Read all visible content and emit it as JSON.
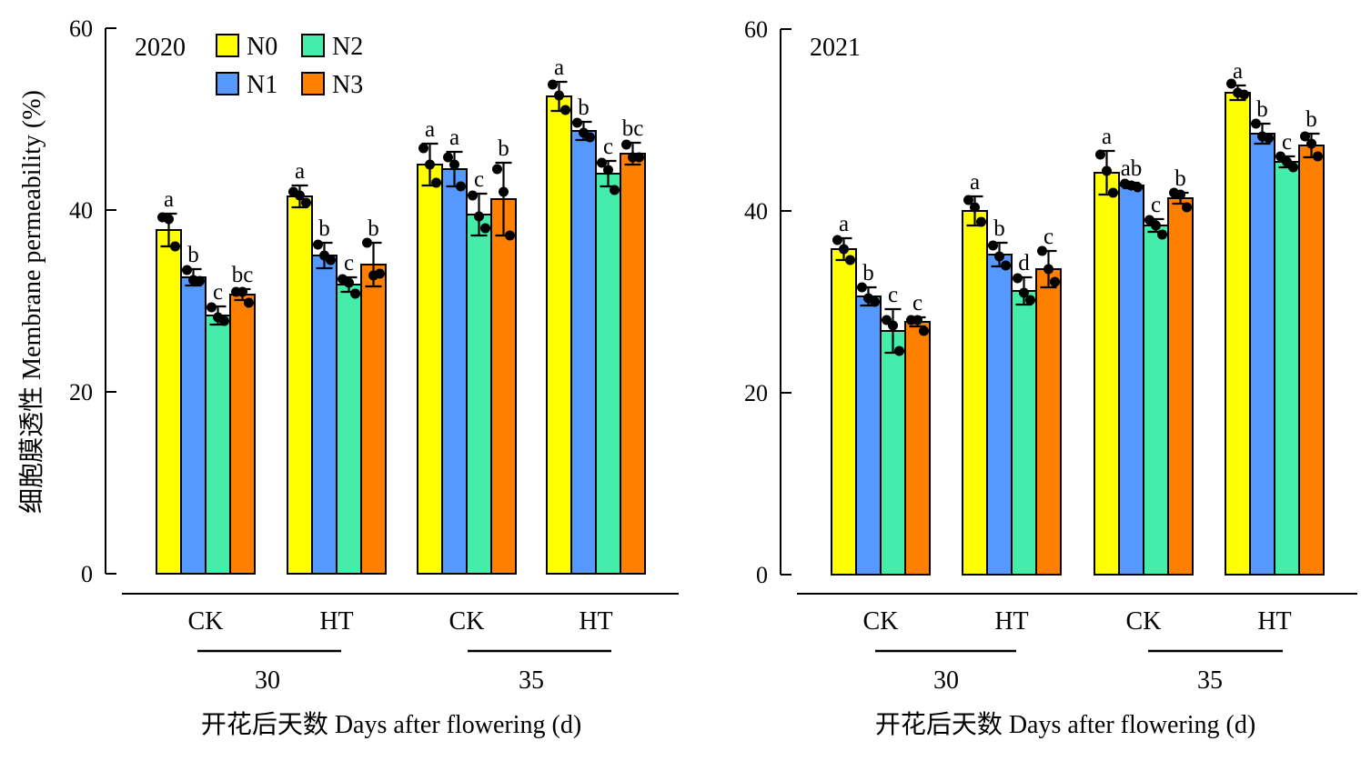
{
  "figure": {
    "ylabel": "细胞膜透性 Membrane permeability (%)",
    "xlabel": "开花后天数 Days after flowering (d)"
  },
  "legend": {
    "items": [
      {
        "label": "N0",
        "color": "#ffff00"
      },
      {
        "label": "N1",
        "color": "#5599ff"
      },
      {
        "label": "N2",
        "color": "#44eeaa"
      },
      {
        "label": "N3",
        "color": "#ff7f00"
      }
    ]
  },
  "chart_data": [
    {
      "type": "bar",
      "title": "2020",
      "ylim": [
        0,
        60
      ],
      "yticks": [
        "0",
        "20",
        "40",
        "60"
      ],
      "categories": [
        "CK",
        "HT",
        "CK",
        "HT"
      ],
      "groups": [
        {
          "label": "30",
          "categories": [
            0,
            1
          ]
        },
        {
          "label": "35",
          "categories": [
            2,
            3
          ]
        }
      ],
      "series": [
        {
          "name": "N0",
          "values": [
            37.8,
            41.5,
            45.0,
            52.5
          ],
          "errors": [
            1.8,
            1.2,
            2.3,
            1.6
          ],
          "letters": [
            "a",
            "a",
            "a",
            "a"
          ],
          "points": [
            [
              39.2,
              36.0,
              39.0
            ],
            [
              42.0,
              40.8,
              41.6
            ],
            [
              46.8,
              43.0,
              45.0
            ],
            [
              53.8,
              51.0,
              52.6
            ]
          ]
        },
        {
          "name": "N1",
          "values": [
            32.6,
            35.0,
            44.5,
            48.7
          ],
          "errors": [
            0.9,
            1.4,
            1.9,
            1.0
          ],
          "letters": [
            "b",
            "b",
            "a",
            "b"
          ],
          "points": [
            [
              33.4,
              32.2,
              32.3
            ],
            [
              36.2,
              34.5,
              35.0
            ],
            [
              45.8,
              42.6,
              45.0
            ],
            [
              49.6,
              48.0,
              48.5
            ]
          ]
        },
        {
          "name": "N2",
          "values": [
            28.4,
            31.8,
            39.5,
            44.0
          ],
          "errors": [
            1.0,
            0.8,
            2.3,
            1.4
          ],
          "letters": [
            "c",
            "c",
            "c",
            "c"
          ],
          "points": [
            [
              29.3,
              27.8,
              28.2
            ],
            [
              32.4,
              30.8,
              32.0
            ],
            [
              41.6,
              38.0,
              39.3
            ],
            [
              45.2,
              42.2,
              44.4
            ]
          ]
        },
        {
          "name": "N3",
          "values": [
            30.7,
            34.0,
            41.2,
            46.2
          ],
          "errors": [
            0.6,
            2.4,
            4.0,
            1.2
          ],
          "letters": [
            "bc",
            "b",
            "b",
            "bc"
          ],
          "points": [
            [
              31.0,
              29.8,
              31.0
            ],
            [
              36.4,
              33.0,
              32.8
            ],
            [
              44.5,
              37.2,
              42.0
            ],
            [
              47.2,
              45.8,
              45.8
            ]
          ]
        }
      ]
    },
    {
      "type": "bar",
      "title": "2021",
      "ylim": [
        0,
        60
      ],
      "yticks": [
        "0",
        "20",
        "40",
        "60"
      ],
      "categories": [
        "CK",
        "HT",
        "CK",
        "HT"
      ],
      "groups": [
        {
          "label": "30",
          "categories": [
            0,
            1
          ]
        },
        {
          "label": "35",
          "categories": [
            2,
            3
          ]
        }
      ],
      "series": [
        {
          "name": "N0",
          "values": [
            35.8,
            40.0,
            44.2,
            53.0
          ],
          "errors": [
            1.2,
            1.6,
            2.4,
            0.8
          ],
          "letters": [
            "a",
            "a",
            "a",
            "a"
          ],
          "points": [
            [
              36.8,
              34.6,
              35.8
            ],
            [
              41.2,
              38.8,
              40.4
            ],
            [
              46.2,
              42.0,
              44.4
            ],
            [
              54.0,
              52.8,
              53.0
            ]
          ]
        },
        {
          "name": "N1",
          "values": [
            30.6,
            35.2,
            42.8,
            48.5
          ],
          "errors": [
            1.0,
            1.3,
            0.3,
            1.1
          ],
          "letters": [
            "b",
            "b",
            "ab",
            "b"
          ],
          "points": [
            [
              31.6,
              30.0,
              30.4
            ],
            [
              36.2,
              34.0,
              35.0
            ],
            [
              43.0,
              42.6,
              42.8
            ],
            [
              49.6,
              48.0,
              48.2
            ]
          ]
        },
        {
          "name": "N2",
          "values": [
            26.8,
            31.2,
            38.4,
            45.4
          ],
          "errors": [
            2.4,
            1.5,
            0.7,
            0.6
          ],
          "letters": [
            "c",
            "d",
            "c",
            "c"
          ],
          "points": [
            [
              28.0,
              24.6,
              27.4
            ],
            [
              32.6,
              30.2,
              31.0
            ],
            [
              39.0,
              37.4,
              38.4
            ],
            [
              46.0,
              44.8,
              45.4
            ]
          ]
        },
        {
          "name": "N3",
          "values": [
            27.8,
            33.6,
            41.4,
            47.2
          ],
          "errors": [
            0.5,
            2.0,
            0.6,
            1.3
          ],
          "letters": [
            "c",
            "c",
            "b",
            "b"
          ],
          "points": [
            [
              28.0,
              26.8,
              28.0
            ],
            [
              35.6,
              32.2,
              33.6
            ],
            [
              42.0,
              40.4,
              41.8
            ],
            [
              48.2,
              46.0,
              47.4
            ]
          ]
        }
      ]
    }
  ]
}
